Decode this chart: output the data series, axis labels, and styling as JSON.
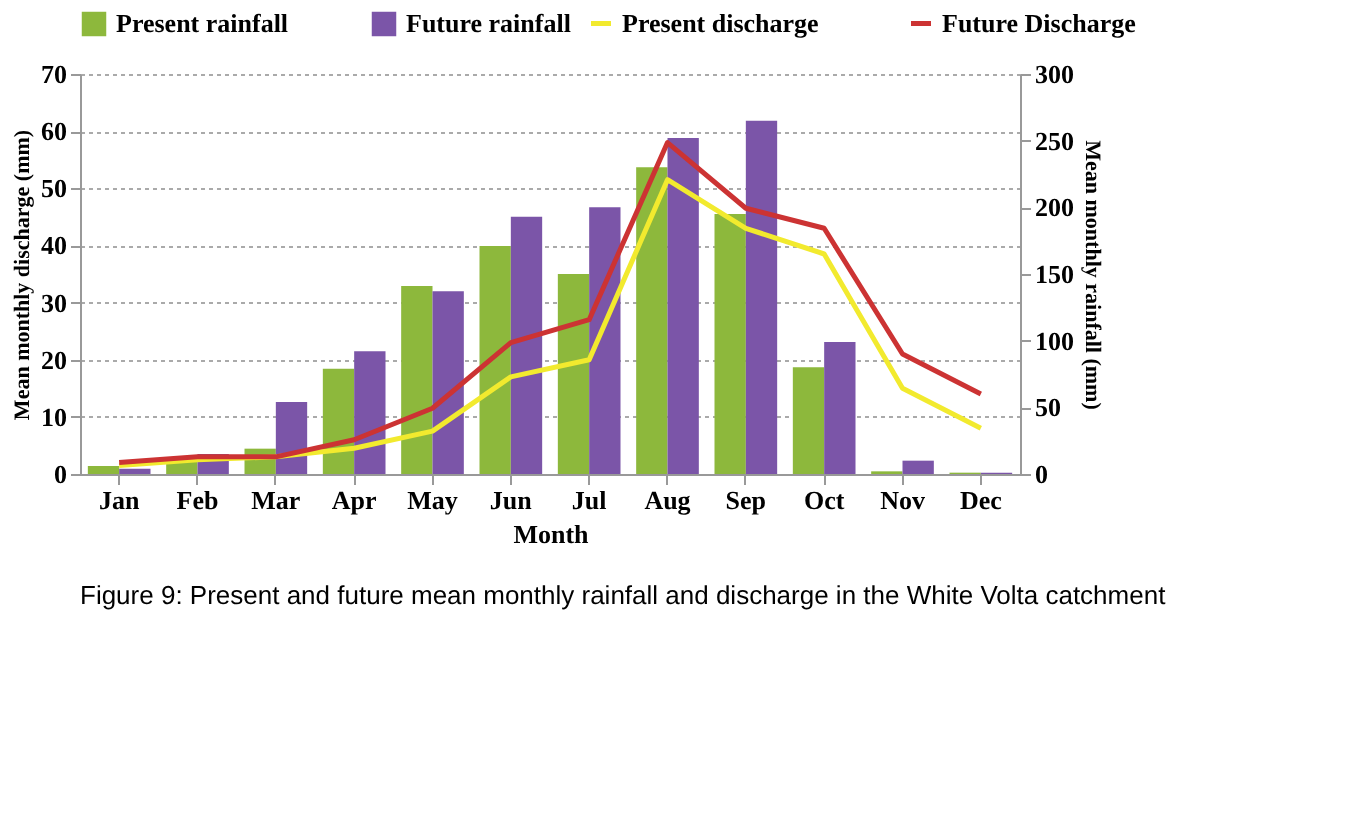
{
  "chart_data": {
    "type": "bar",
    "xlabel": "Month",
    "ylabel": "Mean monthly discharge (mm)",
    "y2label": "Mean monthly rainfall (mm)",
    "categories": [
      "Jan",
      "Feb",
      "Mar",
      "Apr",
      "May",
      "Jun",
      "Jul",
      "Aug",
      "Sep",
      "Oct",
      "Nov",
      "Dec"
    ],
    "series": [
      {
        "name": "Present rainfall",
        "axis": "y2",
        "color": "#8db83c",
        "values": [
          6,
          11,
          19,
          79,
          141,
          171,
          150,
          230,
          195,
          80,
          2,
          1
        ]
      },
      {
        "name": "Future rainfall",
        "axis": "y2",
        "color": "#7b55a8",
        "values": [
          4,
          15,
          54,
          92,
          137,
          193,
          200,
          252,
          265,
          99,
          10,
          1
        ]
      },
      {
        "name": "Present discharge",
        "type": "line",
        "color": "#f2ea2e",
        "values": [
          1.5,
          2.5,
          3,
          4.5,
          7.5,
          17,
          20,
          51.5,
          43,
          38.5,
          15,
          8
        ]
      },
      {
        "name": "Future Discharge",
        "type": "line",
        "color": "#cc3333",
        "values": [
          2,
          3,
          3,
          6,
          11.5,
          23,
          27,
          58,
          46.5,
          43,
          21,
          14
        ]
      }
    ],
    "ylim": [
      0,
      70
    ],
    "yticks": [
      0,
      10,
      20,
      30,
      40,
      50,
      60,
      70
    ],
    "y2lim": [
      0,
      300
    ],
    "y2ticks": [
      0,
      50,
      100,
      150,
      200,
      250,
      300
    ],
    "grid": "y",
    "legend": "top",
    "annotations": [
      "Figure 9: Present and future mean monthly rainfall and discharge in the White Volta catchment"
    ]
  }
}
